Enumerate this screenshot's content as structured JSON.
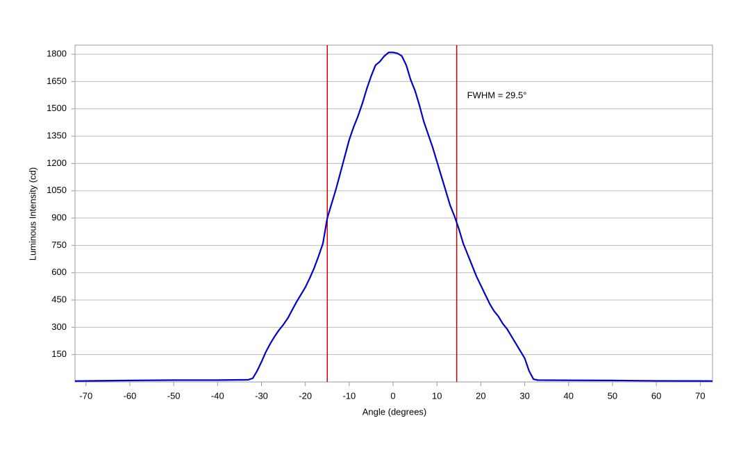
{
  "chart_data": {
    "type": "line",
    "x_label": "Angle (degrees)",
    "y_label": "Luminous Intensity (cd)",
    "annotation": "FWHM = 29.5°",
    "x": [
      -72.5,
      -60,
      -50,
      -40,
      -33,
      -32,
      -31,
      -30,
      -29,
      -28,
      -27,
      -26,
      -25,
      -24,
      -23,
      -22,
      -21,
      -20,
      -19,
      -18,
      -17,
      -16,
      -15,
      -14,
      -13,
      -12,
      -11,
      -10,
      -9,
      -8,
      -7,
      -6,
      -5,
      -4,
      -3,
      -2,
      -1,
      0,
      1,
      2,
      3,
      4,
      5,
      6,
      7,
      8,
      9,
      10,
      11,
      12,
      13,
      14,
      15,
      16,
      17,
      18,
      19,
      20,
      21,
      22,
      23,
      24,
      25,
      26,
      27,
      28,
      29,
      30,
      31,
      32,
      33,
      40,
      50,
      60,
      72.8
    ],
    "series": [
      {
        "name": "Luminous Intensity",
        "color": "#0000cc",
        "values": [
          5,
          8,
          10,
          10,
          12,
          20,
          60,
          110,
          165,
          210,
          250,
          285,
          315,
          350,
          395,
          440,
          480,
          520,
          570,
          625,
          690,
          760,
          900,
          980,
          1060,
          1150,
          1240,
          1330,
          1400,
          1460,
          1530,
          1610,
          1680,
          1740,
          1760,
          1790,
          1810,
          1810,
          1805,
          1790,
          1740,
          1660,
          1600,
          1520,
          1430,
          1360,
          1290,
          1210,
          1130,
          1050,
          970,
          910,
          840,
          760,
          700,
          640,
          580,
          530,
          480,
          430,
          390,
          360,
          320,
          290,
          250,
          210,
          170,
          130,
          60,
          15,
          10,
          9,
          8,
          6,
          5
        ]
      }
    ],
    "vlines": [
      -15,
      14.5
    ],
    "vline_color": "#cc0000",
    "xlim": [
      -72.5,
      72.8
    ],
    "ylim": [
      0,
      1850
    ],
    "xticks": [
      -70,
      -60,
      -50,
      -40,
      -30,
      -20,
      -10,
      0,
      10,
      20,
      30,
      40,
      50,
      60,
      70
    ],
    "yticks": [
      150,
      300,
      450,
      600,
      750,
      900,
      1050,
      1200,
      1350,
      1500,
      1650,
      1800
    ],
    "grid": true
  }
}
